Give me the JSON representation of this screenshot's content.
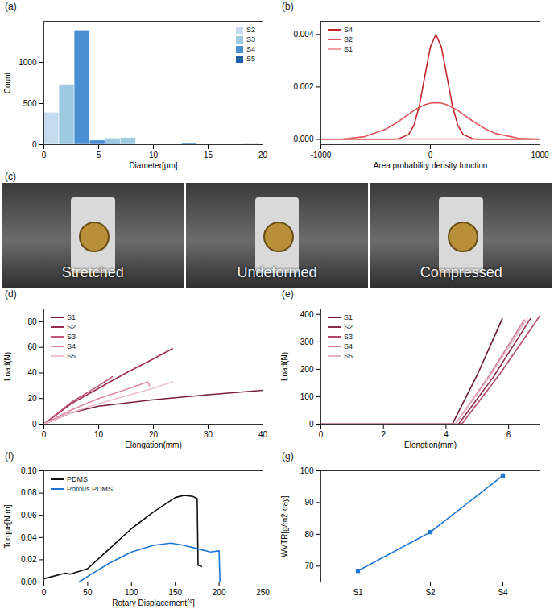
{
  "chart_data": [
    {
      "panel": "(a)",
      "type": "histogram",
      "xlabel": "Diameter[μm]",
      "ylabel": "Count",
      "bins": [
        0,
        1.4,
        2.8,
        4.2,
        5.6,
        7.0,
        8.4,
        9.8,
        11.2,
        12.6,
        14.0,
        15.4,
        16.8,
        18.2,
        19.6
      ],
      "series": [
        {
          "name": "S2",
          "color": "#c6dbef",
          "values": [
            390,
            0,
            0,
            0,
            0,
            0,
            0,
            0,
            0,
            0,
            0,
            0,
            0,
            0
          ]
        },
        {
          "name": "S3",
          "color": "#9ecae1",
          "values": [
            0,
            730,
            0,
            0,
            75,
            80,
            0,
            0,
            0,
            10,
            0,
            0,
            0,
            0
          ]
        },
        {
          "name": "S4",
          "color": "#4a8fd4",
          "values": [
            0,
            0,
            1390,
            50,
            10,
            0,
            0,
            0,
            0,
            20,
            0,
            0,
            0,
            0
          ]
        },
        {
          "name": "S5",
          "color": "#1f5fa8",
          "values": [
            0,
            0,
            0,
            0,
            0,
            0,
            0,
            0,
            0,
            0,
            0,
            0,
            0,
            5
          ]
        }
      ],
      "xlim": [
        0,
        20
      ],
      "xticks": [
        0,
        5,
        10,
        15,
        20
      ],
      "ylim": [
        0,
        1500
      ],
      "yticks": [
        0,
        500,
        1000
      ],
      "legend": "top-right"
    },
    {
      "panel": "(b)",
      "type": "line",
      "xlabel": "Area probability density function",
      "ylabel": null,
      "series": [
        {
          "name": "S4",
          "color": "#c0262d",
          "x": [
            -1000,
            -800,
            -600,
            -400,
            -300,
            -200,
            -150,
            -100,
            -50,
            0,
            50,
            100,
            150,
            200,
            250,
            300,
            400,
            500,
            600,
            800,
            1000
          ],
          "values": [
            0,
            0,
            0,
            0,
            1e-05,
            0.00018,
            0.00054,
            0.0013,
            0.00243,
            0.00353,
            0.004,
            0.00353,
            0.00243,
            0.0013,
            0.00054,
            0.00018,
            1e-05,
            0,
            0,
            0,
            0
          ]
        },
        {
          "name": "S2",
          "color": "#e0525a",
          "x": [
            -1000,
            -800,
            -600,
            -400,
            -300,
            -200,
            -150,
            -100,
            -50,
            0,
            50,
            100,
            150,
            200,
            250,
            300,
            400,
            500,
            600,
            800,
            1000
          ],
          "values": [
            2e-06,
            1.6e-05,
            0.000104,
            0.000402,
            0.00066,
            0.00095,
            0.0011,
            0.00122,
            0.00132,
            0.00138,
            0.0014,
            0.00138,
            0.00132,
            0.00122,
            0.0011,
            0.00095,
            0.00066,
            0.000402,
            0.000218,
            4.4e-05,
            5e-06
          ]
        },
        {
          "name": "S1",
          "color": "#f2a0a5",
          "x": [
            -1000,
            -500,
            0,
            500,
            1000
          ],
          "values": [
            1e-05,
            1e-05,
            1e-05,
            1e-05,
            1e-05
          ]
        }
      ],
      "xlim": [
        -1000,
        1000
      ],
      "xticks": [
        -1000,
        0,
        1000
      ],
      "ylim": [
        -0.0002,
        0.0045
      ],
      "yticks": [
        {
          "value": 0,
          "label": "0.000"
        },
        {
          "value": 0.002,
          "label": "0.002"
        },
        {
          "value": 0.004,
          "label": "0.004"
        }
      ],
      "legend": "top-left"
    },
    {
      "panel": "(c)",
      "type": "image",
      "labels": [
        "Stretched",
        "Undeformed",
        "Compressed"
      ]
    },
    {
      "panel": "(d)",
      "type": "line",
      "xlabel": "Elongation(mm)",
      "ylabel": "Load(N)",
      "series": [
        {
          "name": "S1",
          "color": "#7a1f3d",
          "x": [
            0,
            5,
            10,
            20,
            30,
            40
          ],
          "values": [
            0,
            9,
            14,
            19,
            23,
            26.5
          ]
        },
        {
          "name": "S2",
          "color": "#9b2c4e",
          "x": [
            0,
            5,
            10,
            15,
            20,
            23.5
          ],
          "values": [
            0,
            16,
            28,
            40,
            51,
            59
          ]
        },
        {
          "name": "S3",
          "color": "#c0567a",
          "x": [
            0,
            5,
            10,
            12.5
          ],
          "values": [
            0,
            17,
            30,
            37
          ]
        },
        {
          "name": "S4",
          "color": "#d98aa3",
          "x": [
            0,
            5,
            10,
            15,
            19,
            19.3
          ],
          "values": [
            0,
            11,
            20,
            27,
            33,
            30
          ]
        },
        {
          "name": "S5",
          "color": "#eec0cf",
          "x": [
            0,
            5,
            10,
            15,
            20,
            23.5
          ],
          "values": [
            0,
            9,
            16,
            22,
            28,
            33
          ]
        }
      ],
      "xlim": [
        0,
        40
      ],
      "xticks": [
        0,
        10,
        20,
        30,
        40
      ],
      "ylim": [
        0,
        90
      ],
      "yticks": [
        0,
        20,
        40,
        60,
        80
      ],
      "legend": "top-left"
    },
    {
      "panel": "(e)",
      "type": "line",
      "xlabel": "Elongtion(mm)",
      "ylabel": "Load(N)",
      "series": [
        {
          "name": "S1",
          "color": "#6b1a36",
          "x": [
            0,
            4.2,
            5.0,
            5.8
          ],
          "values": [
            0,
            0,
            180,
            385
          ]
        },
        {
          "name": "S2",
          "color": "#8e2a4a",
          "x": [
            0,
            4.4,
            5.5,
            6.7
          ],
          "values": [
            0,
            0,
            170,
            385
          ]
        },
        {
          "name": "S3",
          "color": "#b34a6e",
          "x": [
            0,
            4.5,
            5.7,
            7.0
          ],
          "values": [
            0,
            0,
            180,
            395
          ]
        },
        {
          "name": "S4",
          "color": "#d07a95",
          "x": [
            0,
            4.3,
            5.4,
            6.5
          ],
          "values": [
            0,
            0,
            180,
            380
          ]
        },
        {
          "name": "S5",
          "color": "#e8b0c0",
          "x": [
            0,
            4.3,
            5.4,
            6.6
          ],
          "values": [
            0,
            0,
            175,
            385
          ]
        }
      ],
      "xlim": [
        0,
        7
      ],
      "xticks": [
        0,
        2,
        4,
        6
      ],
      "ylim": [
        0,
        420
      ],
      "yticks": [
        0,
        100,
        200,
        300,
        400
      ],
      "legend": "top-left"
    },
    {
      "panel": "(f)",
      "type": "line",
      "xlabel": "Rotary Displacement[°]",
      "ylabel": "Torque[N m]",
      "series": [
        {
          "name": "PDMS",
          "color": "#111111",
          "x": [
            0,
            10,
            20,
            25,
            30,
            50,
            75,
            100,
            125,
            150,
            160,
            170,
            175,
            176,
            180
          ],
          "values": [
            0.003,
            0.005,
            0.007,
            0.008,
            0.007,
            0.012,
            0.03,
            0.048,
            0.063,
            0.076,
            0.078,
            0.077,
            0.075,
            0.015,
            0.014
          ]
        },
        {
          "name": "Porous PDMS",
          "color": "#1f77d4",
          "x": [
            40,
            50,
            75,
            100,
            125,
            145,
            160,
            175,
            190,
            200,
            201
          ],
          "values": [
            0,
            0.005,
            0.017,
            0.027,
            0.033,
            0.035,
            0.033,
            0.03,
            0.027,
            0.028,
            0
          ]
        }
      ],
      "xlim": [
        0,
        250
      ],
      "xticks": [
        0,
        50,
        100,
        150,
        200,
        250
      ],
      "ylim": [
        0,
        0.1
      ],
      "yticks": [
        {
          "value": 0,
          "label": "0.00"
        },
        {
          "value": 0.02,
          "label": "0.02"
        },
        {
          "value": 0.04,
          "label": "0.04"
        },
        {
          "value": 0.06,
          "label": "0.06"
        },
        {
          "value": 0.08,
          "label": "0.08"
        },
        {
          "value": 0.1,
          "label": "0.10"
        }
      ],
      "legend": "top-left"
    },
    {
      "panel": "(g)",
      "type": "category_line",
      "xlabel": null,
      "ylabel": "WVTR[g/m2·day]",
      "categories": [
        "S1",
        "S2",
        "S4"
      ],
      "values": [
        68.5,
        80.7,
        98.5
      ],
      "color": "#1f77d4",
      "marker": "square",
      "ylim": [
        65,
        100
      ],
      "yticks": [
        70,
        80,
        90,
        100
      ]
    }
  ]
}
